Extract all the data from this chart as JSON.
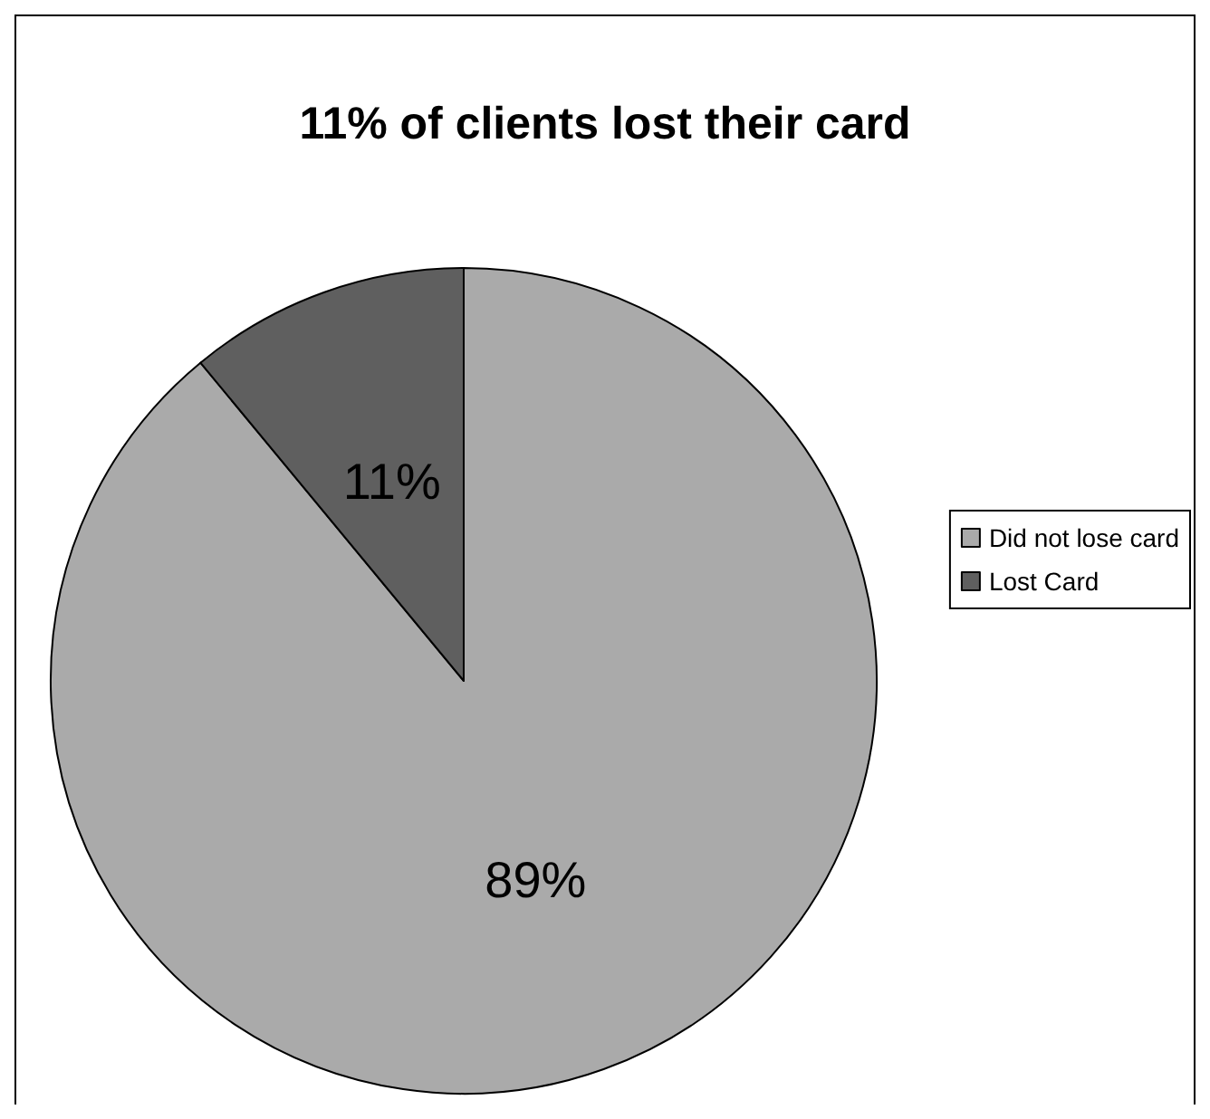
{
  "chart_data": {
    "type": "pie",
    "title": "11% of clients lost their card",
    "categories": [
      "Did not lose card",
      "Lost Card"
    ],
    "values": [
      89,
      11
    ],
    "colors": [
      "#aaaaaa",
      "#5f5f5f"
    ],
    "value_labels": [
      "89%",
      "11%"
    ],
    "legend": "right"
  }
}
